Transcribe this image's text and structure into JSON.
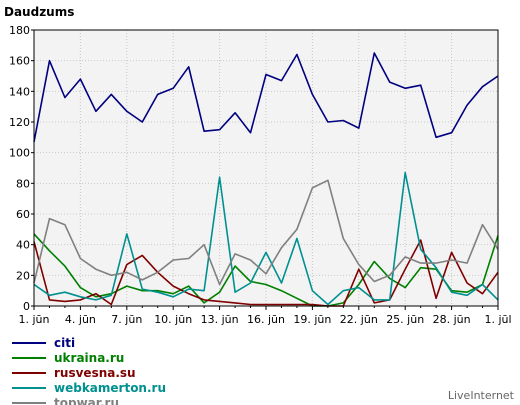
{
  "chart_data": {
    "type": "line",
    "title": "Daudzums",
    "ylim": [
      0,
      180
    ],
    "yticks": [
      0,
      20,
      40,
      60,
      80,
      100,
      120,
      140,
      160,
      180
    ],
    "xticks": [
      "1. jūn",
      "4. jūn",
      "7. jūn",
      "10. jūn",
      "13. jūn",
      "16. jūn",
      "19. jūn",
      "22. jūn",
      "25. jūn",
      "28. jūn",
      "1. jūl"
    ],
    "x": [
      "1. jūn",
      "2. jūn",
      "3. jūn",
      "4. jūn",
      "5. jūn",
      "6. jūn",
      "7. jūn",
      "8. jūn",
      "9. jūn",
      "10. jūn",
      "11. jūn",
      "12. jūn",
      "13. jūn",
      "14. jūn",
      "15. jūn",
      "16. jūn",
      "17. jūn",
      "18. jūn",
      "19. jūn",
      "20. jūn",
      "21. jūn",
      "22. jūn",
      "23. jūn",
      "24. jūn",
      "25. jūn",
      "26. jūn",
      "27. jūn",
      "28. jūn",
      "29. jūn",
      "30. jūn",
      "1. jūl"
    ],
    "grid": true,
    "legend_position": "bottom-left",
    "series": [
      {
        "name": "citi",
        "color": "#000080",
        "values": [
          107,
          160,
          136,
          148,
          127,
          138,
          127,
          120,
          138,
          142,
          156,
          114,
          115,
          126,
          113,
          151,
          147,
          164,
          138,
          120,
          121,
          116,
          165,
          146,
          142,
          144,
          110,
          113,
          131,
          143,
          150
        ]
      },
      {
        "name": "ukraina.ru",
        "color": "#008000",
        "values": [
          47,
          36,
          26,
          12,
          6,
          8,
          13,
          10,
          10,
          8,
          13,
          2,
          9,
          26,
          16,
          14,
          10,
          5,
          0,
          0,
          2,
          14,
          29,
          18,
          12,
          25,
          24,
          10,
          9,
          14,
          46
        ]
      },
      {
        "name": "rusvesna.su",
        "color": "#800000",
        "values": [
          42,
          4,
          3,
          4,
          8,
          1,
          27,
          33,
          22,
          13,
          8,
          4,
          3,
          2,
          1,
          1,
          1,
          1,
          1,
          0,
          0,
          24,
          2,
          4,
          24,
          43,
          5,
          35,
          15,
          8,
          22
        ]
      },
      {
        "name": "webkamerton.ru",
        "color": "#009090",
        "values": [
          14,
          7,
          9,
          6,
          4,
          7,
          47,
          11,
          9,
          6,
          11,
          10,
          84,
          9,
          15,
          35,
          15,
          44,
          10,
          1,
          10,
          12,
          4,
          4,
          87,
          37,
          25,
          9,
          7,
          14,
          4
        ]
      },
      {
        "name": "topwar.ru",
        "color": "#808080",
        "values": [
          15,
          57,
          53,
          31,
          24,
          20,
          22,
          17,
          22,
          30,
          31,
          40,
          14,
          34,
          30,
          21,
          38,
          50,
          77,
          82,
          44,
          27,
          16,
          20,
          32,
          28,
          28,
          30,
          28,
          53,
          37
        ]
      }
    ]
  },
  "branding": "LiveInternet"
}
